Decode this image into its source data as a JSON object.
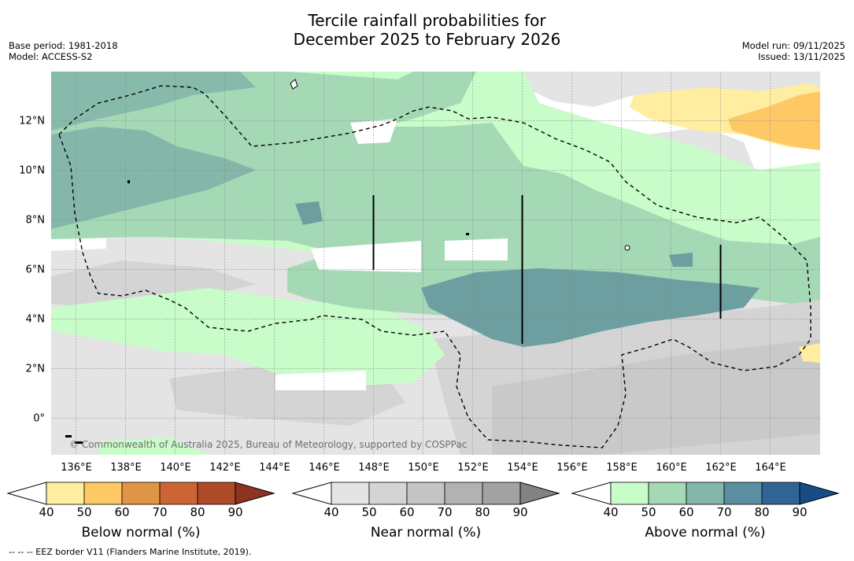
{
  "title_line1": "Tercile rainfall probabilities for",
  "title_line2": "December 2025 to February 2026",
  "meta_left": [
    "Base period: 1981-2018",
    "Model: ACCESS-S2"
  ],
  "meta_right": [
    "Model run: 09/11/2025",
    "Issued: 13/11/2025"
  ],
  "longitude_labels": [
    "136°E",
    "138°E",
    "140°E",
    "142°E",
    "144°E",
    "146°E",
    "148°E",
    "150°E",
    "152°E",
    "154°E",
    "156°E",
    "158°E",
    "160°E",
    "162°E",
    "164°E"
  ],
  "latitude_labels": [
    "12°N",
    "10°N",
    "8°N",
    "6°N",
    "4°N",
    "2°N",
    "0°"
  ],
  "credit": "© Commonwealth of Australia 2025, Bureau of Meteorology, supported by COSPPac",
  "colorbars": [
    {
      "title": "Below normal (%)",
      "ticks": [
        "40",
        "50",
        "60",
        "70",
        "80",
        "90"
      ],
      "colors": [
        "#ffffff",
        "#ffeda0",
        "#fec965",
        "#e09546",
        "#cc6533",
        "#ad4a28",
        "#8e3222"
      ]
    },
    {
      "title": "Near normal (%)",
      "ticks": [
        "40",
        "50",
        "60",
        "70",
        "80",
        "90"
      ],
      "colors": [
        "#ffffff",
        "#e4e4e4",
        "#d4d4d4",
        "#c4c4c4",
        "#b2b2b2",
        "#a2a2a2",
        "#828282"
      ]
    },
    {
      "title": "Above normal (%)",
      "ticks": [
        "40",
        "50",
        "60",
        "70",
        "80",
        "90"
      ],
      "colors": [
        "#ffffff",
        "#c8fcc8",
        "#a5d8b5",
        "#84b7aa",
        "#5a8ea0",
        "#2f6495",
        "#174c84"
      ]
    }
  ],
  "footnote": "--  --  -- EEZ border V11 (Flanders Marine Institute, 2019)."
}
